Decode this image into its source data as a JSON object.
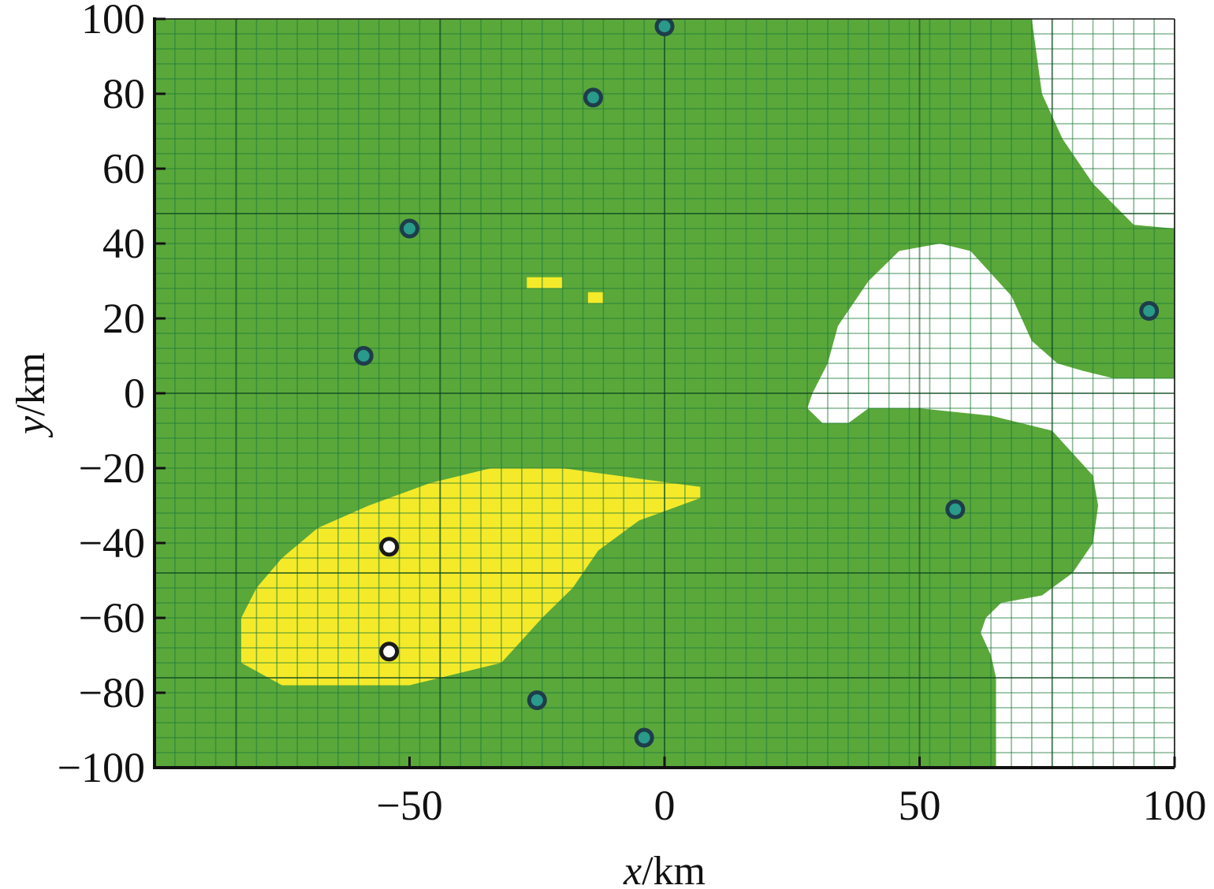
{
  "chart_data": {
    "type": "heatmap",
    "title": "",
    "xlabel_var": "x",
    "xlabel_unit": "/km",
    "ylabel_var": "y",
    "ylabel_unit": "/km",
    "xlim": [
      -100,
      100
    ],
    "ylim": [
      -100,
      100
    ],
    "xticks": [
      -50,
      0,
      50,
      100
    ],
    "yticks": [
      100,
      80,
      60,
      40,
      20,
      0,
      -20,
      -40,
      -60,
      -80,
      -100
    ],
    "grid": true,
    "cell_size_km": 4,
    "colors": {
      "green": "#5aa83a",
      "yellow": "#f4ea2a",
      "white": "#ffffff",
      "fine_grid_on_green": "#1f7a3a",
      "fine_grid_on_white": "#333333",
      "major_grid": "#0a3a18",
      "station_fill": "#2a9a8a",
      "station_edge": "#1e3d4a",
      "hollow_station_fill": "#ffffff",
      "hollow_station_edge": "#1a1a1a"
    },
    "white_region_boundary": [
      [
        72,
        100
      ],
      [
        74,
        80
      ],
      [
        78,
        68
      ],
      [
        84,
        56
      ],
      [
        92,
        45
      ],
      [
        100,
        44
      ],
      [
        100,
        4
      ],
      [
        88,
        4
      ],
      [
        82,
        6
      ],
      [
        77,
        8
      ],
      [
        72,
        14
      ],
      [
        68,
        26
      ],
      [
        60,
        38
      ],
      [
        54,
        40
      ],
      [
        46,
        38
      ],
      [
        40,
        30
      ],
      [
        34,
        18
      ],
      [
        32,
        8
      ],
      [
        29,
        0
      ],
      [
        28,
        -4
      ],
      [
        31,
        -8
      ],
      [
        36,
        -8
      ],
      [
        40,
        -4
      ],
      [
        50,
        -4
      ],
      [
        64,
        -6
      ],
      [
        76,
        -10
      ],
      [
        80,
        -16
      ],
      [
        84,
        -22
      ],
      [
        85,
        -30
      ],
      [
        84,
        -40
      ],
      [
        80,
        -48
      ],
      [
        74,
        -54
      ],
      [
        66,
        -56
      ],
      [
        63,
        -60
      ],
      [
        62,
        -64
      ],
      [
        64,
        -70
      ],
      [
        65,
        -76
      ],
      [
        65,
        -100
      ],
      [
        100,
        -100
      ],
      [
        100,
        100
      ]
    ],
    "yellow_regions": [
      [
        [
          -83,
          -60
        ],
        [
          -80,
          -52
        ],
        [
          -75,
          -44
        ],
        [
          -68,
          -36
        ],
        [
          -58,
          -30
        ],
        [
          -46,
          -24
        ],
        [
          -34,
          -20
        ],
        [
          -20,
          -20
        ],
        [
          -4,
          -23
        ],
        [
          7,
          -25
        ],
        [
          7,
          -28
        ],
        [
          3,
          -30
        ],
        [
          -5,
          -34
        ],
        [
          -13,
          -42
        ],
        [
          -18,
          -52
        ],
        [
          -24,
          -60
        ],
        [
          -32,
          -72
        ],
        [
          -44,
          -76
        ],
        [
          -50,
          -78
        ],
        [
          -75,
          -78
        ],
        [
          -83,
          -72
        ]
      ],
      [
        [
          -27,
          31
        ],
        [
          -20,
          31
        ],
        [
          -20,
          28
        ],
        [
          -27,
          28
        ]
      ],
      [
        [
          -15,
          27
        ],
        [
          -12,
          27
        ],
        [
          -12,
          24
        ],
        [
          -15,
          24
        ]
      ]
    ],
    "stations_filled": [
      [
        0,
        98
      ],
      [
        -14,
        79
      ],
      [
        -50,
        44
      ],
      [
        -59,
        10
      ],
      [
        95,
        22
      ],
      [
        57,
        -31
      ],
      [
        -25,
        -82
      ],
      [
        -4,
        -92
      ]
    ],
    "stations_hollow": [
      [
        -54,
        -41
      ],
      [
        -54,
        -69
      ]
    ]
  }
}
